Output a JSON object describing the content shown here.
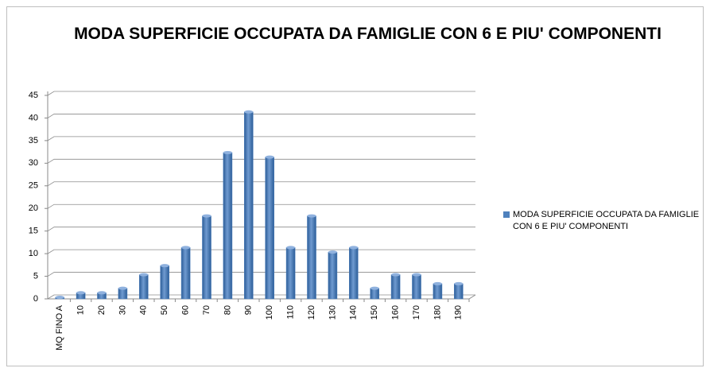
{
  "chart_data": {
    "type": "bar",
    "title": "MODA SUPERFICIE OCCUPATA DA FAMIGLIE CON 6 E PIU' COMPONENTI",
    "categories": [
      "MQ FINO A",
      "10",
      "20",
      "30",
      "40",
      "50",
      "60",
      "70",
      "80",
      "90",
      "100",
      "110",
      "120",
      "130",
      "140",
      "150",
      "160",
      "170",
      "180",
      "190"
    ],
    "series": [
      {
        "name": "MODA SUPERFICIE OCCUPATA DA FAMIGLIE CON 6 E PIU' COMPONENTI",
        "color": "#4f81bd",
        "values": [
          0,
          1,
          1,
          2,
          5,
          7,
          11,
          18,
          32,
          41,
          31,
          11,
          18,
          10,
          11,
          2,
          5,
          5,
          3,
          3
        ]
      }
    ],
    "ylim": [
      0,
      45
    ],
    "yticks": [
      0,
      5,
      10,
      15,
      20,
      25,
      30,
      35,
      40,
      45
    ],
    "grid": true,
    "legend": "right"
  }
}
